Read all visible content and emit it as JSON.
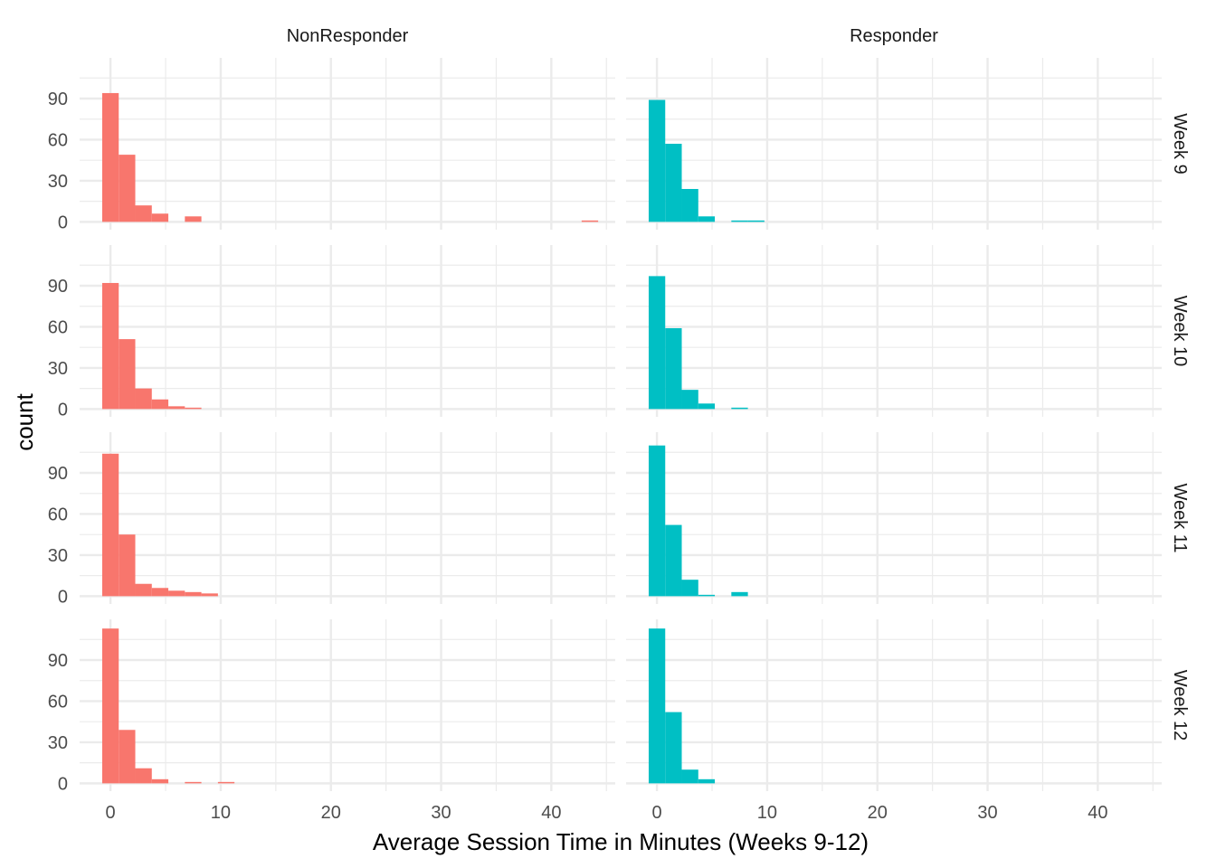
{
  "chart_data": {
    "type": "bar",
    "xlabel": "Average Session Time in Minutes (Weeks 9-12)",
    "ylabel": "count",
    "column_facets": [
      "NonResponder",
      "Responder"
    ],
    "row_facets": [
      "Week 9",
      "Week 10",
      "Week 11",
      "Week 12"
    ],
    "xlim": [
      -2.8,
      45.8
    ],
    "ylim": [
      -5.7,
      119.7
    ],
    "x_ticks": [
      0,
      10,
      20,
      30,
      40
    ],
    "y_ticks": [
      0,
      30,
      60,
      90
    ],
    "bin_width": 1.5,
    "grid": true,
    "legend": "none",
    "colors": {
      "NonResponder": "#F8766D",
      "Responder": "#00BFC4"
    },
    "bin_centers": [
      0,
      1.5,
      3,
      4.5,
      6,
      7.5,
      9,
      10.5,
      12,
      13.5,
      15,
      16.5,
      18,
      19.5,
      21,
      22.5,
      24,
      25.5,
      27,
      28.5,
      30,
      31.5,
      33,
      34.5,
      36,
      37.5,
      39,
      40.5,
      42,
      43.5
    ],
    "panels": [
      {
        "facet_col": "NonResponder",
        "facet_row": "Week 9",
        "counts": [
          94,
          49,
          12,
          6,
          0,
          4,
          0,
          0,
          0,
          0,
          0,
          0,
          0,
          0,
          0,
          0,
          0,
          0,
          0,
          0,
          0,
          0,
          0,
          0,
          0,
          0,
          0,
          0,
          0,
          1
        ]
      },
      {
        "facet_col": "Responder",
        "facet_row": "Week 9",
        "counts": [
          89,
          57,
          24,
          4,
          0,
          1,
          1,
          0,
          0,
          0,
          0,
          0,
          0,
          0,
          0,
          0,
          0,
          0,
          0,
          0,
          0,
          0,
          0,
          0,
          0,
          0,
          0,
          0,
          0,
          0
        ]
      },
      {
        "facet_col": "NonResponder",
        "facet_row": "Week 10",
        "counts": [
          92,
          51,
          15,
          7,
          2,
          1,
          0,
          0,
          0,
          0,
          0,
          0,
          0,
          0,
          0,
          0,
          0,
          0,
          0,
          0,
          0,
          0,
          0,
          0,
          0,
          0,
          0,
          0,
          0,
          0
        ]
      },
      {
        "facet_col": "Responder",
        "facet_row": "Week 10",
        "counts": [
          97,
          59,
          14,
          4,
          0,
          1,
          0,
          0,
          0,
          0,
          0,
          0,
          0,
          0,
          0,
          0,
          0,
          0,
          0,
          0,
          0,
          0,
          0,
          0,
          0,
          0,
          0,
          0,
          0,
          0
        ]
      },
      {
        "facet_col": "NonResponder",
        "facet_row": "Week 11",
        "counts": [
          104,
          45,
          9,
          6,
          4,
          3,
          2,
          0,
          0,
          0,
          0,
          0,
          0,
          0,
          0,
          0,
          0,
          0,
          0,
          0,
          0,
          0,
          0,
          0,
          0,
          0,
          0,
          0,
          0,
          0
        ]
      },
      {
        "facet_col": "Responder",
        "facet_row": "Week 11",
        "counts": [
          110,
          52,
          12,
          1,
          0,
          3,
          0,
          0,
          0,
          0,
          0,
          0,
          0,
          0,
          0,
          0,
          0,
          0,
          0,
          0,
          0,
          0,
          0,
          0,
          0,
          0,
          0,
          0,
          0,
          0
        ]
      },
      {
        "facet_col": "NonResponder",
        "facet_row": "Week 12",
        "counts": [
          113,
          39,
          11,
          3,
          0,
          1,
          0,
          1,
          0,
          0,
          0,
          0,
          0,
          0,
          0,
          0,
          0,
          0,
          0,
          0,
          0,
          0,
          0,
          0,
          0,
          0,
          0,
          0,
          0,
          0
        ]
      },
      {
        "facet_col": "Responder",
        "facet_row": "Week 12",
        "counts": [
          113,
          52,
          10,
          3,
          0,
          0,
          0,
          0,
          0,
          0,
          0,
          0,
          0,
          0,
          0,
          0,
          0,
          0,
          0,
          0,
          0,
          0,
          0,
          0,
          0,
          0,
          0,
          0,
          0,
          0
        ]
      }
    ]
  }
}
